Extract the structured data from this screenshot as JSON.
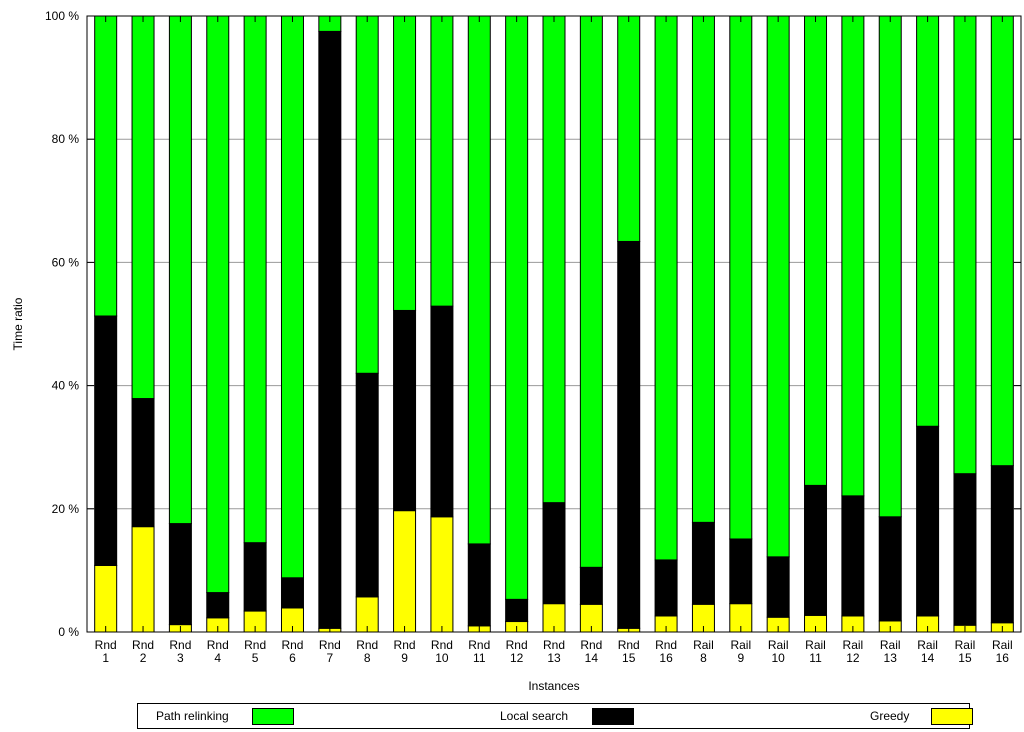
{
  "chart_data": {
    "type": "bar",
    "stacked": true,
    "xlabel": "Instances",
    "ylabel": "Time ratio",
    "ylim": [
      0,
      100
    ],
    "yticks": [
      "0 %",
      "20 %",
      "40 %",
      "60 %",
      "80 %",
      "100 %"
    ],
    "grid": "horizontal",
    "legend_position": "bottom",
    "categories": [
      [
        "Rnd",
        "1"
      ],
      [
        "Rnd",
        "2"
      ],
      [
        "Rnd",
        "3"
      ],
      [
        "Rnd",
        "4"
      ],
      [
        "Rnd",
        "5"
      ],
      [
        "Rnd",
        "6"
      ],
      [
        "Rnd",
        "7"
      ],
      [
        "Rnd",
        "8"
      ],
      [
        "Rnd",
        "9"
      ],
      [
        "Rnd",
        "10"
      ],
      [
        "Rnd",
        "11"
      ],
      [
        "Rnd",
        "12"
      ],
      [
        "Rnd",
        "13"
      ],
      [
        "Rnd",
        "14"
      ],
      [
        "Rnd",
        "15"
      ],
      [
        "Rnd",
        "16"
      ],
      [
        "Rail",
        "8"
      ],
      [
        "Rail",
        "9"
      ],
      [
        "Rail",
        "10"
      ],
      [
        "Rail",
        "11"
      ],
      [
        "Rail",
        "12"
      ],
      [
        "Rail",
        "13"
      ],
      [
        "Rail",
        "14"
      ],
      [
        "Rail",
        "15"
      ],
      [
        "Rail",
        "16"
      ]
    ],
    "series": [
      {
        "name": "Greedy",
        "color": "#ffff00",
        "values": [
          10.8,
          17.1,
          1.2,
          2.3,
          3.4,
          3.9,
          0.6,
          5.7,
          19.7,
          18.7,
          1.0,
          1.7,
          4.6,
          4.5,
          0.6,
          2.6,
          4.5,
          4.6,
          2.4,
          2.7,
          2.6,
          1.8,
          2.6,
          1.1,
          1.5
        ]
      },
      {
        "name": "Local search",
        "color": "#000000",
        "values": [
          40.5,
          20.8,
          16.4,
          4.1,
          11.1,
          4.9,
          96.9,
          36.3,
          32.5,
          34.2,
          13.3,
          3.6,
          16.4,
          6.0,
          62.8,
          9.1,
          13.3,
          10.5,
          9.8,
          21.1,
          19.5,
          16.9,
          30.8,
          24.6,
          25.5
        ]
      },
      {
        "name": "Path relinking",
        "color": "#00ff00",
        "values": [
          48.7,
          62.1,
          82.4,
          93.6,
          85.5,
          91.2,
          2.5,
          58.0,
          47.8,
          47.1,
          85.7,
          94.7,
          79.0,
          89.5,
          36.6,
          88.3,
          82.2,
          84.9,
          87.8,
          76.2,
          77.9,
          81.3,
          66.6,
          74.3,
          73.0
        ]
      }
    ]
  },
  "legend": [
    {
      "label": "Path relinking",
      "color": "#00ff00"
    },
    {
      "label": "Local search",
      "color": "#000000"
    },
    {
      "label": "Greedy",
      "color": "#ffff00"
    }
  ]
}
